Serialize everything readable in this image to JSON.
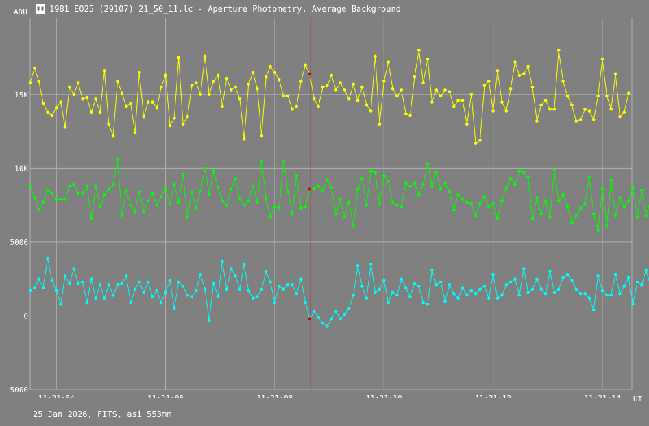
{
  "window": {
    "title": "1981 EO25 (29107) 21_50_11.lc - Aperture Photometry, Average Background",
    "icon_name": "app-icon"
  },
  "footer": "25 Jan 2026, FITS, asi 553mm",
  "chart_data": {
    "type": "line",
    "title": "",
    "xlabel": "UT",
    "ylabel": "ADU",
    "xlim": [
      3.52,
      14.54
    ],
    "ylim": [
      -5000,
      20200
    ],
    "grid": true,
    "background": "#808080",
    "grid_color": "#b4b4b4",
    "x_ticks": [
      {
        "value": 4,
        "label": "11:21:04"
      },
      {
        "value": 6,
        "label": "11:21:06"
      },
      {
        "value": 8,
        "label": "11:21:08"
      },
      {
        "value": 10,
        "label": "11:21:10"
      },
      {
        "value": 12,
        "label": "11:21:12"
      },
      {
        "value": 14,
        "label": "11:21:14"
      }
    ],
    "y_ticks": [
      {
        "value": -5000,
        "label": "−5000"
      },
      {
        "value": 0,
        "label": "0"
      },
      {
        "value": 5000,
        "label": "5000"
      },
      {
        "value": 10000,
        "label": "10K"
      },
      {
        "value": 15000,
        "label": "15K"
      }
    ],
    "cursor": {
      "x": 8.65,
      "color": "#cc0000"
    },
    "x": {
      "start": 3.52,
      "step": 0.08
    },
    "series": [
      {
        "color": "#ffff00",
        "values": [
          15800,
          16800,
          15900,
          14400,
          13800,
          13600,
          14100,
          14500,
          12800,
          15500,
          15000,
          15800,
          14700,
          14800,
          13800,
          14700,
          13800,
          16600,
          13000,
          12200,
          15900,
          15100,
          14200,
          14400,
          12400,
          16500,
          13500,
          14500,
          14500,
          14100,
          15500,
          16300,
          12900,
          13400,
          17500,
          13000,
          13500,
          15600,
          15800,
          15000,
          17600,
          15000,
          15900,
          16300,
          14200,
          16100,
          15300,
          15500,
          14700,
          12000,
          15700,
          16500,
          15400,
          12200,
          16200,
          16900,
          16500,
          16000,
          14900,
          14900,
          14000,
          14200,
          15900,
          17000,
          16400,
          14700,
          14200,
          15500,
          15600,
          16300,
          15300,
          15800,
          15300,
          14700,
          15700,
          14600,
          15500,
          14300,
          13900,
          17600,
          13000,
          15900,
          17200,
          15400,
          14900,
          15300,
          13700,
          13600,
          16200,
          18000,
          15800,
          17400,
          14500,
          15300,
          14900,
          15300,
          15200,
          14200,
          14600,
          14600,
          13000,
          15000,
          11700,
          11900,
          15600,
          15900,
          13900,
          16600,
          14500,
          13900,
          15400,
          17200,
          16300,
          16400,
          16900,
          15500,
          13200,
          14300,
          14600,
          14000,
          14000,
          18000,
          15900,
          14900,
          14300,
          13200,
          13300,
          14000,
          13900,
          13300,
          14900,
          17400,
          14900,
          14000,
          16400,
          13500,
          13800,
          15100
        ]
      },
      {
        "color": "#00ff00",
        "values": [
          8800,
          8000,
          7200,
          7700,
          8500,
          8300,
          7900,
          7900,
          7900,
          8800,
          8900,
          8300,
          8300,
          8800,
          6600,
          8800,
          7400,
          8200,
          8600,
          8900,
          10600,
          6800,
          8500,
          7500,
          7100,
          8400,
          7100,
          7800,
          8300,
          7500,
          8100,
          8600,
          7600,
          8900,
          7700,
          9600,
          6700,
          8400,
          7300,
          8500,
          10000,
          8200,
          9800,
          8700,
          7800,
          7500,
          8600,
          9300,
          7900,
          7500,
          7800,
          8800,
          7700,
          10500,
          7900,
          6700,
          7400,
          7300,
          10500,
          8400,
          6900,
          9500,
          7300,
          7400,
          8600,
          8600,
          8800,
          8500,
          9200,
          8700,
          6900,
          7900,
          6700,
          7700,
          6100,
          8600,
          9300,
          7500,
          9800,
          9700,
          7600,
          9500,
          9100,
          7700,
          7500,
          7400,
          9000,
          8800,
          9000,
          8200,
          8900,
          10300,
          8800,
          9700,
          8600,
          9000,
          8400,
          7200,
          8200,
          7900,
          7700,
          7600,
          6800,
          7600,
          8100,
          7400,
          7600,
          6600,
          7800,
          8700,
          9300,
          8900,
          9800,
          9700,
          9400,
          6600,
          8000,
          6900,
          7800,
          6700,
          9900,
          7800,
          8200,
          7400,
          6300,
          6800,
          7300,
          7600,
          9400,
          6900,
          5800,
          8600,
          6100,
          9200,
          6800,
          8000,
          7400,
          7800,
          8700,
          6700,
          8500,
          6800,
          7800,
          6700,
          6700,
          8700,
          8000
        ]
      },
      {
        "color": "#00ffff",
        "values": [
          1700,
          1900,
          2500,
          1900,
          3900,
          2400,
          1700,
          800,
          2700,
          2200,
          3200,
          2200,
          2300,
          900,
          2500,
          1200,
          2100,
          1200,
          2100,
          1400,
          2100,
          2200,
          2700,
          900,
          1800,
          2300,
          1600,
          2300,
          1300,
          1700,
          900,
          1600,
          2400,
          500,
          2300,
          2000,
          1400,
          1300,
          1700,
          2800,
          1800,
          -300,
          2200,
          1300,
          3700,
          1800,
          3200,
          2700,
          1800,
          3500,
          1700,
          1200,
          1300,
          1800,
          3000,
          2300,
          900,
          2000,
          1800,
          2100,
          2100,
          1500,
          2500,
          900,
          -200,
          300,
          -100,
          -500,
          -700,
          -200,
          300,
          -200,
          100,
          500,
          1400,
          3400,
          2000,
          1200,
          3500,
          1600,
          1800,
          2400,
          900,
          1600,
          1400,
          2500,
          1900,
          1300,
          2200,
          2000,
          900,
          800,
          3100,
          2100,
          2300,
          1000,
          2100,
          1500,
          1200,
          1900,
          1400,
          1700,
          1500,
          1800,
          2000,
          1200,
          2800,
          1200,
          1400,
          2100,
          2300,
          2500,
          1400,
          3200,
          1600,
          1800,
          2500,
          1800,
          1500,
          3000,
          1600,
          1800,
          2600,
          2800,
          2400,
          1800,
          1500,
          1500,
          1200,
          400,
          2700,
          1700,
          1400,
          1400,
          2800,
          1500,
          2000,
          2600,
          800,
          2300,
          2100,
          3100,
          2100
        ]
      }
    ]
  }
}
